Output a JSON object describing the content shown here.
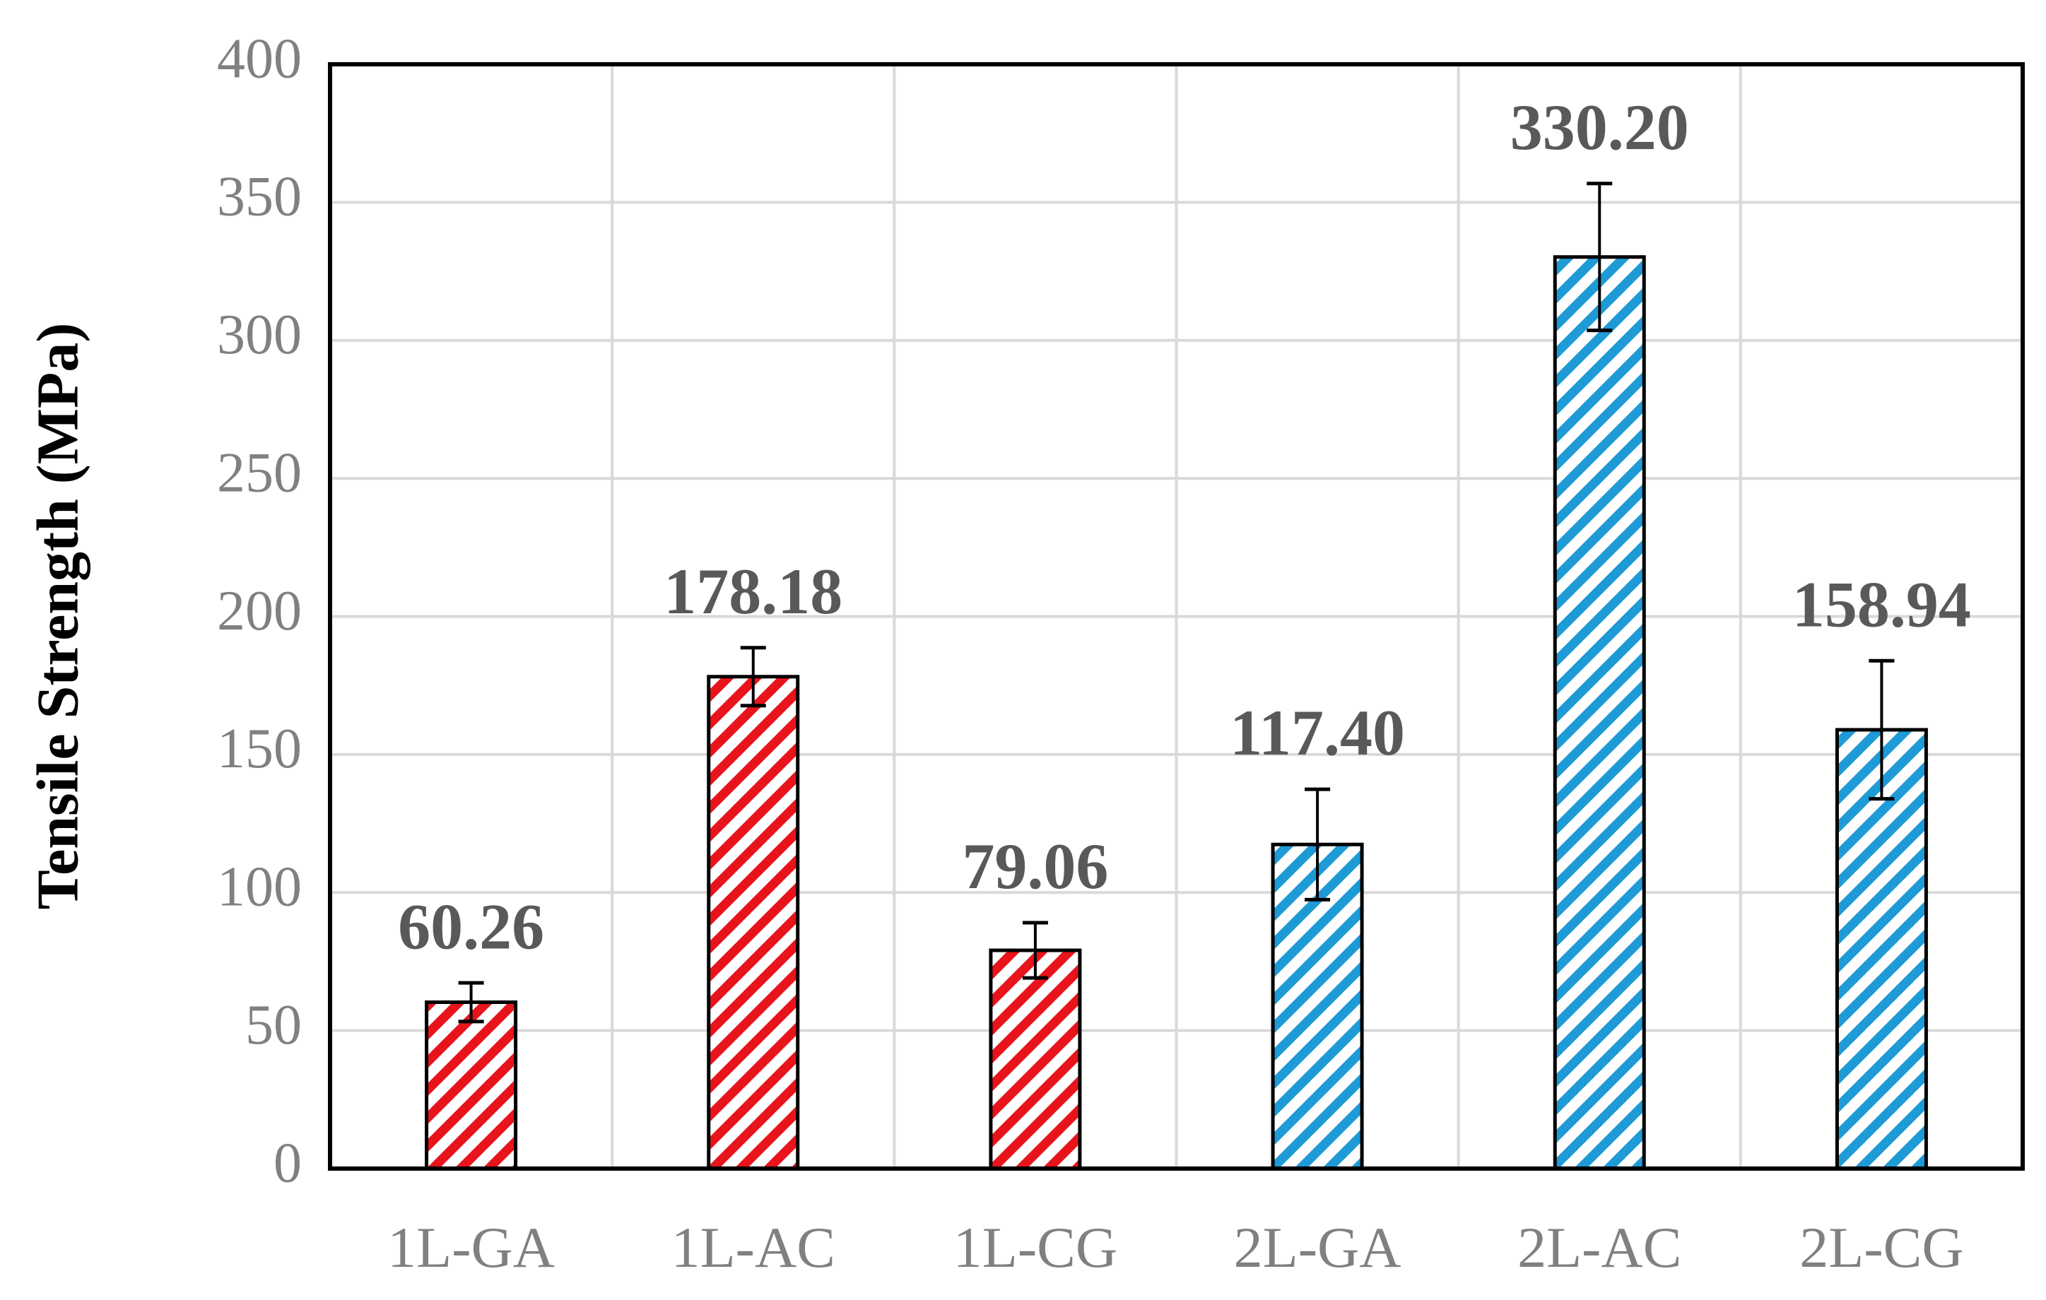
{
  "chart_data": {
    "type": "bar",
    "y_label": "Tensile Strength (MPa)",
    "categories": [
      "1L-GA",
      "1L-AC",
      "1L-CG",
      "2L-GA",
      "2L-AC",
      "2L-CG"
    ],
    "values": [
      60.26,
      178.18,
      79.06,
      117.4,
      330.2,
      158.94
    ],
    "value_labels": [
      "60.26",
      "178.18",
      "79.06",
      "117.40",
      "330.20",
      "158.94"
    ],
    "errors": [
      7,
      10.5,
      10,
      20,
      26.6,
      25
    ],
    "colors": [
      "#e8141b",
      "#e8141b",
      "#e8141b",
      "#1e9ad6",
      "#1e9ad6",
      "#1e9ad6"
    ],
    "ylim": [
      0,
      400
    ],
    "yticks": [
      0,
      50,
      100,
      150,
      200,
      250,
      300,
      350,
      400
    ],
    "grid": true
  }
}
